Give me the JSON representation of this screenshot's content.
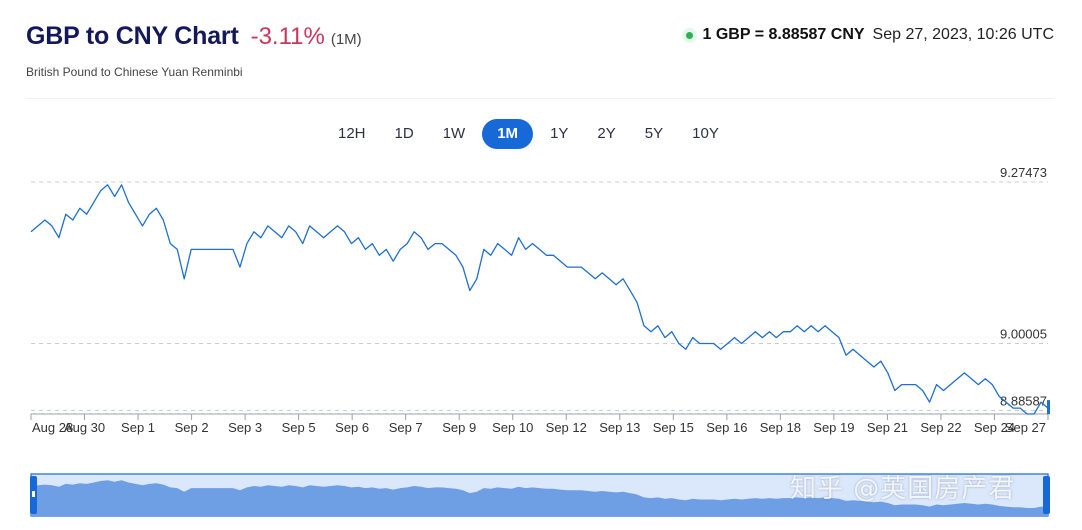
{
  "header": {
    "title": "GBP to CNY Chart",
    "change": "-3.11%",
    "period": "(1M)",
    "subtitle": "British Pound to Chinese Yuan Renminbi",
    "rate": "1 GBP = 8.88587 CNY",
    "timestamp": "Sep 27, 2023, 10:26 UTC"
  },
  "tabs": [
    {
      "label": "12H",
      "active": false
    },
    {
      "label": "1D",
      "active": false
    },
    {
      "label": "1W",
      "active": false
    },
    {
      "label": "1M",
      "active": true
    },
    {
      "label": "1Y",
      "active": false
    },
    {
      "label": "2Y",
      "active": false
    },
    {
      "label": "5Y",
      "active": false
    },
    {
      "label": "10Y",
      "active": false
    }
  ],
  "colors": {
    "accent": "#1769d8",
    "line": "#1f6fcc",
    "negative": "#c9385c",
    "navigator_fill": "#6e9fe4",
    "navigator_bg": "#dbe7fb"
  },
  "watermark": "知乎 @英国房产君",
  "chart_data": {
    "type": "line",
    "title": "",
    "xlabel": "",
    "ylabel": "",
    "y_ticks": [
      "9.27473",
      "9.00005",
      "8.88587"
    ],
    "y_tick_values": [
      9.27473,
      9.00005,
      8.88587
    ],
    "ylim": [
      8.88,
      9.27473
    ],
    "x_ticks": [
      "Aug 28",
      "Aug 30",
      "Sep 1",
      "Sep 2",
      "Sep 3",
      "Sep 5",
      "Sep 6",
      "Sep 7",
      "Sep 9",
      "Sep 10",
      "Sep 12",
      "Sep 13",
      "Sep 15",
      "Sep 16",
      "Sep 18",
      "Sep 19",
      "Sep 21",
      "Sep 22",
      "Sep 24",
      "Sep 27"
    ],
    "grid": true,
    "legend": "none",
    "series": [
      {
        "values": [
          9.19,
          9.2,
          9.21,
          9.2,
          9.18,
          9.22,
          9.21,
          9.23,
          9.22,
          9.24,
          9.26,
          9.27,
          9.25,
          9.27,
          9.24,
          9.22,
          9.2,
          9.22,
          9.23,
          9.21,
          9.17,
          9.16,
          9.11,
          9.16,
          9.16,
          9.16,
          9.16,
          9.16,
          9.16,
          9.16,
          9.13,
          9.17,
          9.19,
          9.18,
          9.2,
          9.19,
          9.18,
          9.2,
          9.19,
          9.17,
          9.2,
          9.19,
          9.18,
          9.19,
          9.2,
          9.19,
          9.17,
          9.18,
          9.16,
          9.17,
          9.15,
          9.16,
          9.14,
          9.16,
          9.17,
          9.19,
          9.18,
          9.16,
          9.17,
          9.17,
          9.16,
          9.15,
          9.13,
          9.09,
          9.11,
          9.16,
          9.15,
          9.17,
          9.16,
          9.15,
          9.18,
          9.16,
          9.17,
          9.16,
          9.15,
          9.15,
          9.14,
          9.13,
          9.13,
          9.13,
          9.12,
          9.11,
          9.12,
          9.11,
          9.1,
          9.11,
          9.09,
          9.07,
          9.03,
          9.02,
          9.03,
          9.01,
          9.02,
          9.0,
          8.99,
          9.01,
          9.0,
          9.0,
          9.0,
          8.99,
          9.0,
          9.01,
          9.0,
          9.01,
          9.02,
          9.01,
          9.02,
          9.01,
          9.02,
          9.02,
          9.03,
          9.02,
          9.03,
          9.02,
          9.03,
          9.02,
          9.01,
          8.98,
          8.99,
          8.98,
          8.97,
          8.96,
          8.97,
          8.95,
          8.92,
          8.93,
          8.93,
          8.93,
          8.92,
          8.9,
          8.93,
          8.92,
          8.93,
          8.94,
          8.95,
          8.94,
          8.93,
          8.94,
          8.93,
          8.91,
          8.9,
          8.89,
          8.89,
          8.88,
          8.88,
          8.9,
          8.89
        ]
      }
    ]
  }
}
